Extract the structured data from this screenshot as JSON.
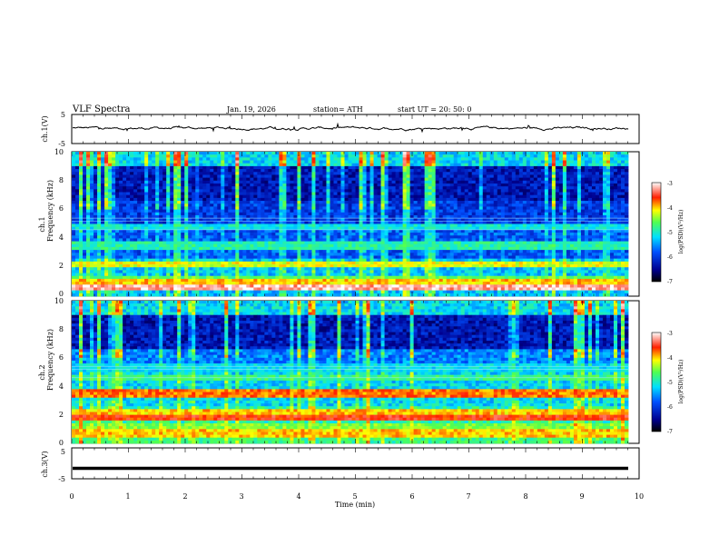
{
  "header": {
    "title": "VLF  Spectra",
    "date": "Jan.  19,  2026",
    "station": "station= ATH",
    "start_ut": "start  UT  =    20: 50: 0"
  },
  "chart_data": [
    {
      "type": "line",
      "name": "ch1-waveform",
      "ylabel": "ch.1(V)",
      "ylim": [
        -5,
        5
      ],
      "yticks": [
        "5",
        "-5"
      ],
      "xlim": [
        0,
        9.8
      ],
      "description_values": {
        "mean": 0.3,
        "range": [
          -0.6,
          1.2
        ]
      }
    },
    {
      "type": "heatmap",
      "name": "ch1-spectrogram",
      "ylabel_lines": [
        "ch.1",
        "Frequency  (kHz)"
      ],
      "ylim": [
        0,
        10
      ],
      "yticks": [
        "0",
        "2",
        "4",
        "6",
        "8",
        "10"
      ],
      "xlim": [
        0,
        9.8
      ],
      "bands_khz": [
        {
          "freq": 0.3,
          "level": -6.8
        },
        {
          "freq": 0.6,
          "level": -3.2
        },
        {
          "freq": 0.9,
          "level": -4.0
        },
        {
          "freq": 1.2,
          "level": -4.6
        },
        {
          "freq": 2.2,
          "level": -4.2
        },
        {
          "freq": 3.5,
          "level": -4.9
        },
        {
          "freq": 4.8,
          "level": -5.1
        }
      ],
      "colorbar": {
        "label": "log(PSD)(V²/Hz)",
        "range": [
          -7,
          -3
        ],
        "ticks": [
          "-3",
          "-4",
          "-5",
          "-6",
          "-7"
        ]
      }
    },
    {
      "type": "heatmap",
      "name": "ch2-spectrogram",
      "ylabel_lines": [
        "ch.2",
        "Frequency  (kHz)"
      ],
      "ylim": [
        0,
        10
      ],
      "yticks": [
        "0",
        "2",
        "4",
        "6",
        "8",
        "10"
      ],
      "xlim": [
        0,
        9.8
      ],
      "bands_khz": [
        {
          "freq": 0.3,
          "level": -4.8
        },
        {
          "freq": 0.7,
          "level": -4.0
        },
        {
          "freq": 1.2,
          "level": -4.5
        },
        {
          "freq": 1.8,
          "level": -3.6
        },
        {
          "freq": 2.1,
          "level": -4.0
        },
        {
          "freq": 3.5,
          "level": -3.8
        },
        {
          "freq": 4.6,
          "level": -4.8
        },
        {
          "freq": 5.3,
          "level": -5.2
        }
      ],
      "colorbar": {
        "label": "log(PSD)(V²/Hz)",
        "range": [
          -7,
          -3
        ],
        "ticks": [
          "-3",
          "-4",
          "-5",
          "-6",
          "-7"
        ]
      }
    },
    {
      "type": "line",
      "name": "ch3-waveform",
      "ylabel": "ch.3(V)",
      "ylim": [
        -5,
        5
      ],
      "yticks": [
        "5",
        "-5"
      ],
      "xlim": [
        0,
        9.8
      ],
      "description_values": {
        "mean": -1.6
      }
    }
  ],
  "x_axis": {
    "label": "Time  (min)",
    "range": [
      0,
      10
    ],
    "ticks": [
      "0",
      "1",
      "2",
      "3",
      "4",
      "5",
      "6",
      "7",
      "8",
      "9",
      "10"
    ]
  }
}
